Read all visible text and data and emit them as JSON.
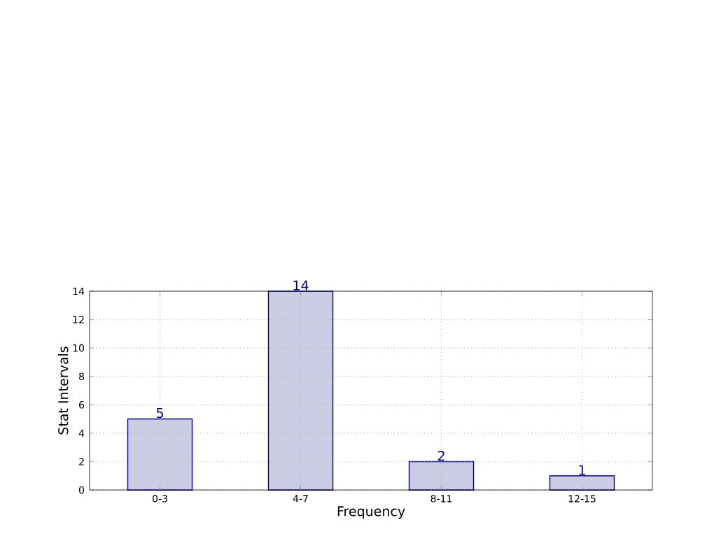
{
  "chart_data": {
    "type": "bar",
    "xlabel": "Frequency",
    "ylabel": "Stat Intervals",
    "categories": [
      "0-3",
      "4-7",
      "8-11",
      "12-15"
    ],
    "values": [
      5,
      14,
      2,
      1
    ],
    "color": "#ccccE5",
    "ylim": [
      0,
      14
    ],
    "yticks": [
      0,
      2,
      4,
      6,
      8,
      10,
      12,
      14
    ],
    "grid": true,
    "data_labels": true
  }
}
